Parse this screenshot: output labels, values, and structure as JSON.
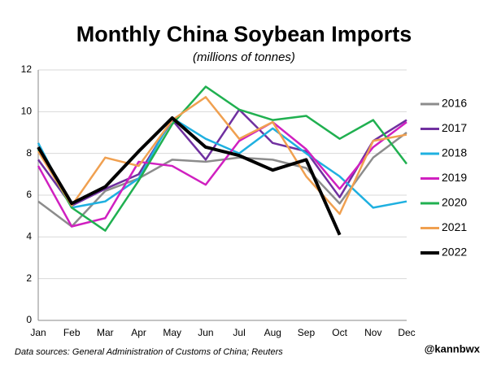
{
  "chart_data": {
    "type": "line",
    "title": "Monthly China Soybean Imports",
    "subtitle": "(millions of tonnes)",
    "source": "Data sources: General Administration of Customs of China; Reuters",
    "credit": "@kannbwx",
    "categories": [
      "Jan",
      "Feb",
      "Mar",
      "Apr",
      "May",
      "Jun",
      "Jul",
      "Aug",
      "Sep",
      "Oct",
      "Nov",
      "Dec"
    ],
    "ylim": [
      0,
      12
    ],
    "yticks": [
      0,
      2,
      4,
      6,
      8,
      10,
      12
    ],
    "grid": true,
    "legend": "right",
    "series": [
      {
        "name": "2016",
        "color": "#8c8c8c",
        "values": [
          5.7,
          4.5,
          6.2,
          6.8,
          7.7,
          7.6,
          7.8,
          7.7,
          7.3,
          5.6,
          7.8,
          9.0
        ]
      },
      {
        "name": "2017",
        "color": "#7030a0",
        "values": [
          7.7,
          5.5,
          6.3,
          7.0,
          9.6,
          7.7,
          10.1,
          8.5,
          8.1,
          5.9,
          8.6,
          9.6
        ]
      },
      {
        "name": "2018",
        "color": "#1fb0e0",
        "values": [
          8.5,
          5.4,
          5.7,
          6.8,
          9.7,
          8.7,
          8.0,
          9.2,
          8.0,
          6.9,
          5.4,
          5.7
        ]
      },
      {
        "name": "2019",
        "color": "#d020c0",
        "values": [
          7.4,
          4.5,
          4.9,
          7.6,
          7.4,
          6.5,
          8.6,
          9.5,
          8.2,
          6.3,
          8.3,
          9.5
        ]
      },
      {
        "name": "2020",
        "color": "#20b050",
        "values": [
          8.2,
          5.4,
          4.3,
          6.7,
          9.4,
          11.2,
          10.1,
          9.6,
          9.8,
          8.7,
          9.6,
          7.5
        ]
      },
      {
        "name": "2021",
        "color": "#f0a050",
        "values": [
          8.1,
          5.5,
          7.8,
          7.4,
          9.6,
          10.7,
          8.7,
          9.5,
          6.9,
          5.1,
          8.6,
          8.9
        ]
      },
      {
        "name": "2022",
        "color": "#000000",
        "values": [
          8.3,
          5.6,
          6.4,
          8.1,
          9.7,
          8.3,
          7.9,
          7.2,
          7.7,
          4.1,
          null,
          null
        ]
      }
    ]
  }
}
